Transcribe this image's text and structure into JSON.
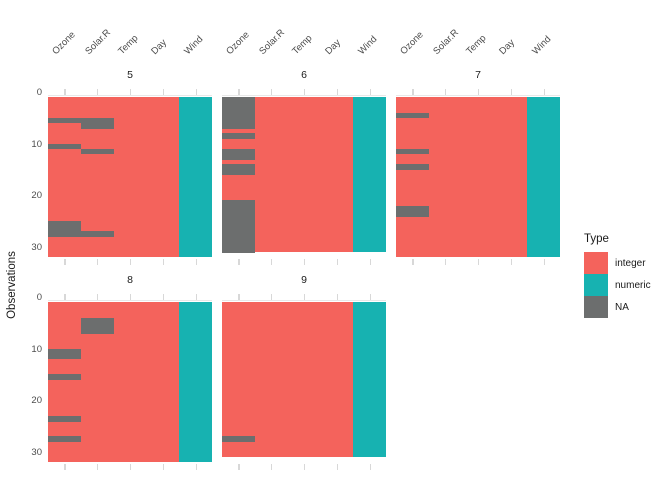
{
  "chart_data": {
    "type": "heatmap",
    "title": "",
    "xlabel": "",
    "ylabel": "Observations",
    "columns": [
      "Ozone",
      "Solar.R",
      "Temp",
      "Day",
      "Wind"
    ],
    "column_types": {
      "Ozone": "integer",
      "Solar.R": "integer",
      "Temp": "integer",
      "Day": "integer",
      "Wind": "numeric"
    },
    "y_ticks": [
      0,
      10,
      20,
      30
    ],
    "y_axis_max_rows": 31,
    "facets": [
      {
        "label": "5",
        "n_obs": 31,
        "na_cells": {
          "Ozone": [
            5,
            10,
            25,
            26,
            27
          ],
          "Solar.R": [
            5,
            6,
            11,
            27
          ]
        }
      },
      {
        "label": "6",
        "n_obs": 30,
        "na_cells": {
          "Ozone": [
            1,
            2,
            3,
            4,
            5,
            6,
            8,
            11,
            12,
            14,
            15,
            21,
            22,
            23,
            24,
            25,
            26,
            27,
            28,
            29,
            30
          ]
        }
      },
      {
        "label": "7",
        "n_obs": 31,
        "na_cells": {
          "Ozone": [
            4,
            11,
            14,
            22,
            23
          ]
        }
      },
      {
        "label": "8",
        "n_obs": 31,
        "na_cells": {
          "Ozone": [
            10,
            11,
            15,
            23,
            27
          ],
          "Solar.R": [
            4,
            5,
            6
          ]
        }
      },
      {
        "label": "9",
        "n_obs": 30,
        "na_cells": {
          "Ozone": [
            27
          ]
        }
      }
    ],
    "legend": {
      "title": "Type",
      "items": [
        {
          "label": "integer",
          "color": "#F4635C"
        },
        {
          "label": "numeric",
          "color": "#17B2B1"
        },
        {
          "label": "NA",
          "color": "#6C6E6E"
        }
      ]
    },
    "colors": {
      "grid": "#E8E8E8",
      "tick": "#D8D8D8",
      "axis_text": "#4D4D4D",
      "strip_text": "#1A1A1A",
      "background": "#FFFFFF"
    }
  }
}
